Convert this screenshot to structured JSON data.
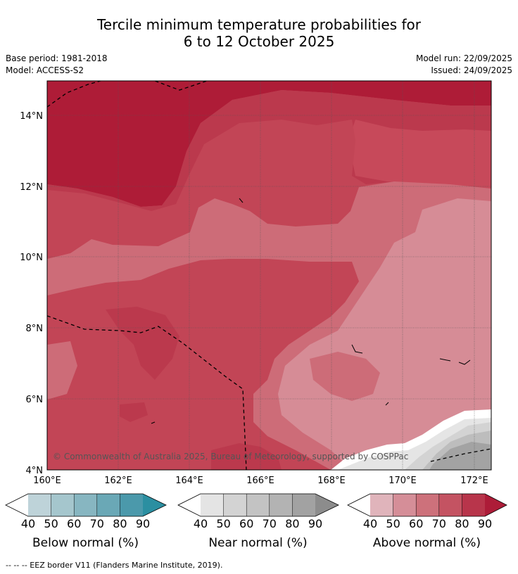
{
  "title": {
    "line1": "Tercile minimum temperature probabilities for",
    "line2": "6 to 12 October 2025"
  },
  "info": {
    "base_period": "Base period: 1981-2018",
    "model": "Model: ACCESS-S2",
    "model_run": "Model run: 22/09/2025",
    "issued": "Issued: 24/09/2025"
  },
  "map": {
    "lat_labels": [
      "14°N",
      "12°N",
      "10°N",
      "8°N",
      "6°N",
      "4°N"
    ],
    "lon_labels": [
      "160°E",
      "162°E",
      "164°E",
      "166°E",
      "168°E",
      "170°E",
      "172°E"
    ],
    "copyright": "© Commonwealth of Australia 2025, Bureau of Meteorology, supported by COSPPac"
  },
  "colorbars": [
    {
      "name": "below",
      "label": "Below normal (%)",
      "ticks": [
        "40",
        "50",
        "60",
        "70",
        "80",
        "90"
      ],
      "colors": [
        "#bed3d9",
        "#a5c6cd",
        "#87b6c1",
        "#6aa8b6",
        "#4b99ab",
        "#2b8fa1"
      ]
    },
    {
      "name": "near",
      "label": "Near normal (%)",
      "ticks": [
        "40",
        "50",
        "60",
        "70",
        "80",
        "90"
      ],
      "colors": [
        "#e4e4e4",
        "#d3d3d3",
        "#c3c3c3",
        "#b3b3b3",
        "#a2a2a2",
        "#8c8c8c"
      ]
    },
    {
      "name": "above",
      "label": "Above normal (%)",
      "ticks": [
        "40",
        "50",
        "60",
        "70",
        "80",
        "90"
      ],
      "colors": [
        "#e0b4bb",
        "#d58e98",
        "#cd717b",
        "#c45362",
        "#b8354b",
        "#ad1c38"
      ]
    }
  ],
  "footnote": "--  --  -- EEZ border V11 (Flanders Marine Institute, 2019)."
}
